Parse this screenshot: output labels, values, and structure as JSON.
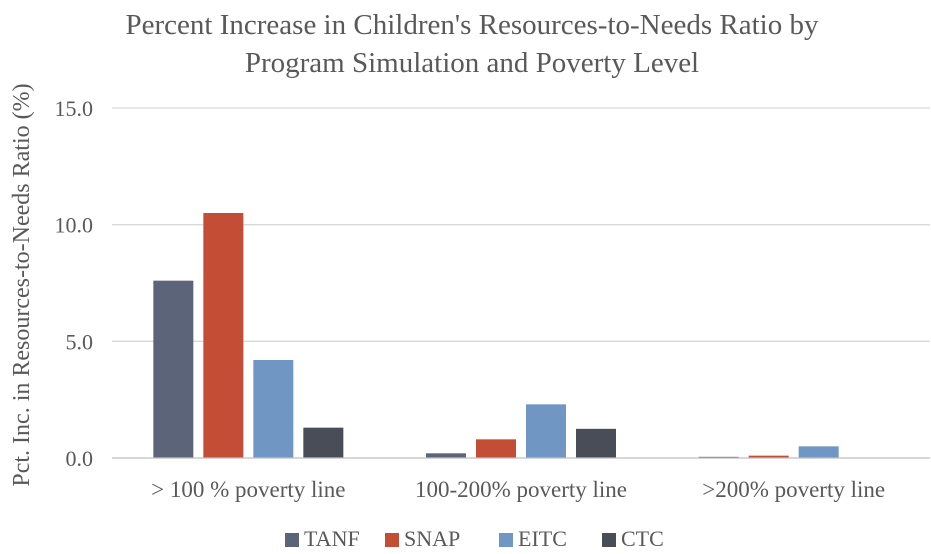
{
  "chart_data": {
    "type": "bar",
    "title": "Percent Increase in Children's Resources-to-Needs Ratio by Program Simulation and Poverty Level",
    "title_lines": [
      "Percent Increase in Children's Resources-to-Needs Ratio by",
      "Program Simulation and Poverty Level"
    ],
    "xlabel": "",
    "ylabel": "Pct. Inc. in Resources-to-Needs Ratio (%)",
    "ylim": [
      0,
      15
    ],
    "yticks": [
      0,
      5,
      10,
      15
    ],
    "ytick_labels": [
      "0.0",
      "5.0",
      "10.0",
      "15.0"
    ],
    "grid": true,
    "legend_position": "bottom",
    "categories": [
      "> 100 % poverty line",
      "100-200% poverty line",
      ">200% poverty line"
    ],
    "series": [
      {
        "name": "TANF",
        "color": "#5b6478",
        "values": [
          7.6,
          0.2,
          0.05
        ]
      },
      {
        "name": "SNAP",
        "color": "#c44d35",
        "values": [
          10.5,
          0.8,
          0.1
        ]
      },
      {
        "name": "EITC",
        "color": "#7096c3",
        "values": [
          4.2,
          2.3,
          0.5
        ]
      },
      {
        "name": "CTC",
        "color": "#484d58",
        "values": [
          1.3,
          1.25,
          0.0
        ]
      }
    ]
  },
  "colors": {
    "text": "#595959",
    "grid": "#d9d9d9",
    "axis": "#bfbfbf",
    "background": "#ffffff"
  }
}
